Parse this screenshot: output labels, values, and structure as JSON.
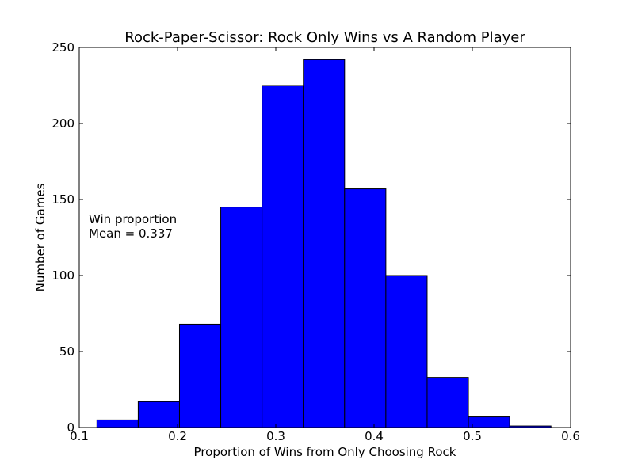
{
  "chart_data": {
    "type": "bar",
    "title": "Rock-Paper-Scissor: Rock Only Wins vs A Random Player",
    "xlabel": "Proportion of Wins from Only Choosing Rock",
    "ylabel": "Number of Games",
    "xlim": [
      0.1,
      0.6
    ],
    "ylim": [
      0,
      250
    ],
    "xticks": [
      0.1,
      0.2,
      0.3,
      0.4,
      0.5,
      0.6
    ],
    "yticks": [
      0,
      50,
      100,
      150,
      200,
      250
    ],
    "bins": [
      {
        "x0": 0.118,
        "x1": 0.16,
        "count": 5
      },
      {
        "x0": 0.16,
        "x1": 0.202,
        "count": 17
      },
      {
        "x0": 0.202,
        "x1": 0.244,
        "count": 68
      },
      {
        "x0": 0.244,
        "x1": 0.286,
        "count": 145
      },
      {
        "x0": 0.286,
        "x1": 0.328,
        "count": 225
      },
      {
        "x0": 0.328,
        "x1": 0.37,
        "count": 242
      },
      {
        "x0": 0.37,
        "x1": 0.412,
        "count": 157
      },
      {
        "x0": 0.412,
        "x1": 0.454,
        "count": 100
      },
      {
        "x0": 0.454,
        "x1": 0.496,
        "count": 33
      },
      {
        "x0": 0.496,
        "x1": 0.538,
        "count": 7
      },
      {
        "x0": 0.538,
        "x1": 0.58,
        "count": 1
      }
    ],
    "bar_color": "#0000ff",
    "edge_color": "#000000",
    "grid": false,
    "annotation": {
      "line1": "Win proportion",
      "line2": "Mean = 0.337"
    }
  }
}
